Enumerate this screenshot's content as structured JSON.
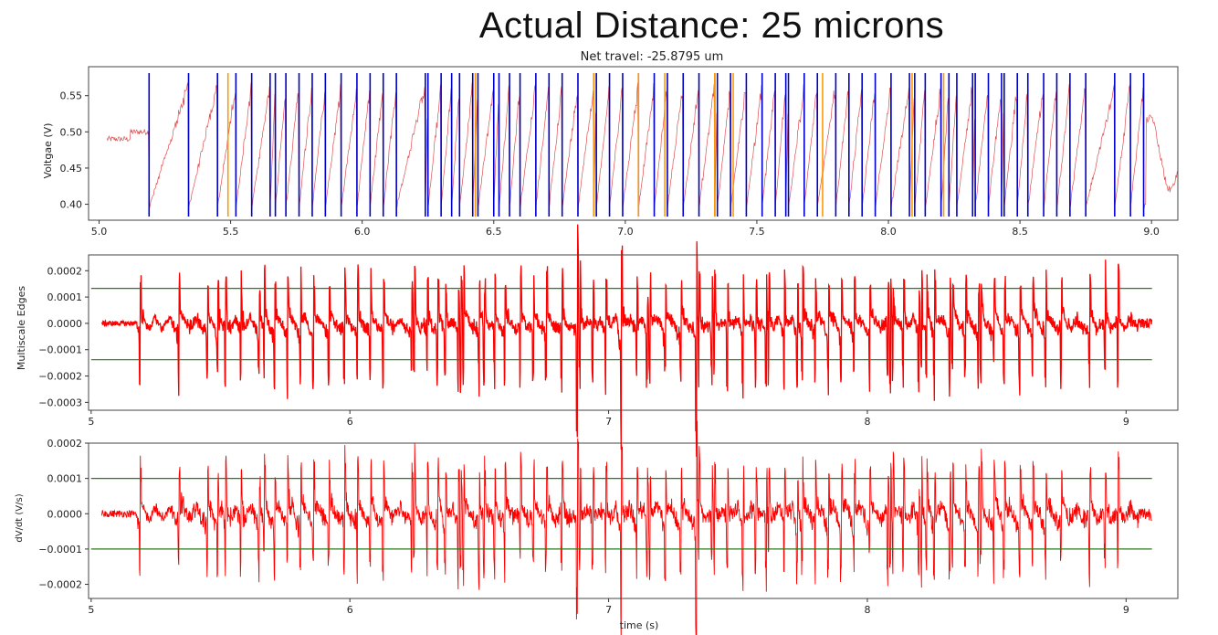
{
  "page_title": "Actual Distance: 25 microns",
  "chart_data": [
    {
      "type": "line",
      "title": "Net travel: -25.8795 um",
      "xlabel": "",
      "ylabel": "Voltgae (V)",
      "xlim": [
        4.96,
        9.1
      ],
      "ylim": [
        0.378,
        0.59
      ],
      "xticks": [
        "5.0",
        "5.5",
        "6.0",
        "6.5",
        "7.0",
        "7.5",
        "8.0",
        "8.5",
        "9.0"
      ],
      "xtick_values": [
        5.0,
        5.5,
        6.0,
        6.5,
        7.0,
        7.5,
        8.0,
        8.5,
        9.0
      ],
      "yticks": [
        "0.40",
        "0.45",
        "0.50",
        "0.55"
      ],
      "ytick_values": [
        0.4,
        0.45,
        0.5,
        0.55
      ],
      "series": [
        {
          "name": "voltage",
          "color": "#e05050",
          "signal": "sawtooth",
          "baseline": 0.49,
          "low": 0.385,
          "high": 0.575,
          "start": 5.03,
          "end": 9.1,
          "ramp_start": 5.19
        }
      ],
      "vlines_blue": {
        "color": "#0000cc",
        "x": [
          5.19,
          5.34,
          5.45,
          5.52,
          5.58,
          5.65,
          5.67,
          5.71,
          5.76,
          5.81,
          5.86,
          5.92,
          5.98,
          6.03,
          6.08,
          6.13,
          6.24,
          6.25,
          6.3,
          6.34,
          6.37,
          6.42,
          6.44,
          6.5,
          6.52,
          6.56,
          6.6,
          6.66,
          6.71,
          6.76,
          6.82,
          6.88,
          6.89,
          6.94,
          6.99,
          7.05,
          7.11,
          7.16,
          7.22,
          7.28,
          7.34,
          7.35,
          7.4,
          7.46,
          7.52,
          7.57,
          7.61,
          7.62,
          7.68,
          7.73,
          7.8,
          7.85,
          7.9,
          7.95,
          8.01,
          8.08,
          8.1,
          8.14,
          8.2,
          8.23,
          8.26,
          8.32,
          8.33,
          8.38,
          8.43,
          8.44,
          8.49,
          8.53,
          8.59,
          8.64,
          8.69,
          8.75,
          8.86,
          8.92,
          8.97
        ]
      },
      "vlines_orange": {
        "color": "#ff9900",
        "x": [
          5.49,
          6.43,
          6.88,
          7.05,
          7.15,
          7.34,
          7.41,
          7.75,
          8.09,
          8.21
        ]
      }
    },
    {
      "type": "line",
      "title": "",
      "xlabel": "",
      "ylabel": "Multiscale Edges",
      "xlim": [
        4.99,
        9.2
      ],
      "ylim": [
        -0.00033,
        0.00026
      ],
      "xticks": [
        "5",
        "6",
        "7",
        "8",
        "9"
      ],
      "xtick_values": [
        5,
        6,
        7,
        8,
        9
      ],
      "yticks": [
        "0.0002",
        "0.0001",
        "0.0000",
        "−0.0001",
        "−0.0002",
        "−0.0003"
      ],
      "ytick_values": [
        0.0002,
        0.0001,
        0.0,
        -0.0001,
        -0.0002,
        -0.0003
      ],
      "series": [
        {
          "name": "edges",
          "color": "#ff0000",
          "signal": "edges",
          "amp_up": 0.00022,
          "amp_down": 0.00029,
          "start": 5.04,
          "end": 9.1
        }
      ],
      "hlines": {
        "color": "#2a7a1a",
        "y": [
          0.000133,
          -0.000138
        ]
      }
    },
    {
      "type": "line",
      "title": "",
      "xlabel": "time (s)",
      "ylabel": "dV/dt (V/s)",
      "xlim": [
        4.99,
        9.2
      ],
      "ylim": [
        -0.00024,
        0.0002
      ],
      "xticks": [
        "5",
        "6",
        "7",
        "8",
        "9"
      ],
      "xtick_values": [
        5,
        6,
        7,
        8,
        9
      ],
      "yticks": [
        "0.0002",
        "0.0001",
        "0.0000",
        "−0.0001",
        "−0.0002"
      ],
      "ytick_values": [
        0.0002,
        0.0001,
        0.0,
        -0.0001,
        -0.0002
      ],
      "series": [
        {
          "name": "derivative",
          "color": "#ff0000",
          "signal": "edges",
          "amp_up": 0.00017,
          "amp_down": 0.00022,
          "start": 5.04,
          "end": 9.1
        }
      ],
      "hlines": {
        "color": "#2a7a1a",
        "y": [
          0.0001,
          -0.0001
        ]
      }
    }
  ]
}
